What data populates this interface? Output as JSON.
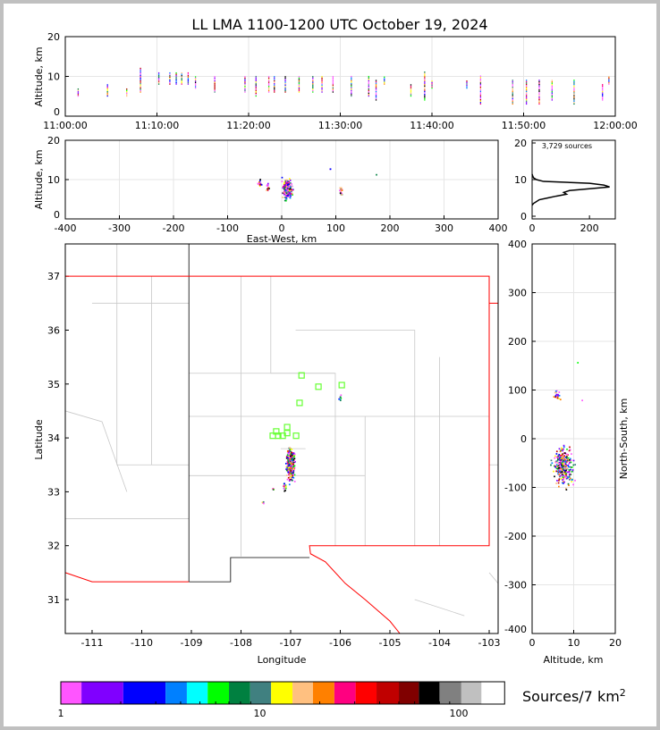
{
  "chart_data": [
    {
      "type": "scatter",
      "panel": "time-altitude",
      "title": "LL LMA 1100-1200 UTC October 19, 2024",
      "ylabel": "Altitude, km",
      "xlim": [
        "11:00:00",
        "12:00:00"
      ],
      "ylim": [
        0,
        20
      ],
      "xticks": [
        "11:00:00",
        "11:10:00",
        "11:20:00",
        "11:30:00",
        "11:40:00",
        "11:50:00",
        "12:00:00"
      ],
      "yticks": [
        0,
        10,
        20
      ],
      "grid": true,
      "streaks_min_altlo_althi": [
        [
          1.4,
          5,
          7
        ],
        [
          4.6,
          5,
          8
        ],
        [
          6.7,
          5,
          7
        ],
        [
          8.2,
          6,
          12
        ],
        [
          10.2,
          8,
          11
        ],
        [
          11.4,
          8,
          11
        ],
        [
          12.1,
          8,
          11
        ],
        [
          12.7,
          8,
          11
        ],
        [
          13.4,
          8,
          11
        ],
        [
          14.2,
          7,
          10
        ],
        [
          16.3,
          6,
          10
        ],
        [
          19.6,
          6,
          10
        ],
        [
          20.8,
          5,
          10
        ],
        [
          22.2,
          6,
          10
        ],
        [
          22.8,
          6,
          10
        ],
        [
          24,
          6,
          10
        ],
        [
          25.5,
          6,
          10
        ],
        [
          27,
          6,
          10
        ],
        [
          28,
          6,
          10
        ],
        [
          29.2,
          6,
          10
        ],
        [
          31.2,
          5,
          10
        ],
        [
          33.1,
          5,
          10
        ],
        [
          33.9,
          4,
          9
        ],
        [
          34.8,
          8,
          10
        ],
        [
          37.7,
          5,
          8
        ],
        [
          39.2,
          4,
          11
        ],
        [
          40,
          7,
          9
        ],
        [
          43.8,
          7,
          9
        ],
        [
          45.3,
          3,
          10
        ],
        [
          48.8,
          3,
          9
        ],
        [
          50.3,
          3,
          9
        ],
        [
          51.7,
          3,
          9
        ],
        [
          53.1,
          4,
          9
        ],
        [
          55.5,
          3,
          9
        ],
        [
          58.6,
          4,
          8
        ],
        [
          59.3,
          8,
          10
        ]
      ]
    },
    {
      "type": "scatter",
      "panel": "east-west-altitude",
      "xlabel": "East-West, km",
      "ylabel": "Altitude, km",
      "xlim": [
        -400,
        400
      ],
      "ylim": [
        0,
        20
      ],
      "xticks": [
        -400,
        -300,
        -200,
        -100,
        0,
        100,
        200,
        300,
        400
      ],
      "yticks": [
        0,
        10,
        20
      ],
      "clusters_ew_alt_spread_count": [
        [
          10,
          7.5,
          8,
          2.2,
          260
        ],
        [
          -40,
          9,
          3,
          0.8,
          20
        ],
        [
          -25,
          8,
          3,
          0.8,
          15
        ],
        [
          110,
          7,
          2,
          1.5,
          20
        ],
        [
          90,
          12.5,
          1,
          0.3,
          2
        ],
        [
          175,
          11,
          1,
          0.3,
          1
        ]
      ]
    },
    {
      "type": "line",
      "panel": "altitude-histogram",
      "annotation": "3,729 sources",
      "xlim": [
        0,
        290
      ],
      "ylim": [
        0,
        20
      ],
      "xticks": [
        0,
        200
      ],
      "yticks": [
        0,
        10,
        20
      ],
      "alt": [
        3,
        3.5,
        4,
        4.5,
        5,
        5.5,
        6,
        6.5,
        7,
        7.5,
        8,
        8.5,
        9,
        9.5,
        10,
        10.5,
        11,
        11.5
      ],
      "count": [
        0,
        5,
        15,
        25,
        55,
        85,
        120,
        110,
        130,
        200,
        270,
        250,
        200,
        40,
        15,
        5,
        2,
        0
      ]
    },
    {
      "type": "scatter",
      "panel": "plan-view",
      "xlabel": "Longitude",
      "ylabel": "Latitude",
      "xlim": [
        -111.54,
        -102.82
      ],
      "ylim": [
        30.37,
        37.6
      ],
      "xticks": [
        -111,
        -110,
        -109,
        -108,
        -107,
        -106,
        -105,
        -104,
        -103
      ],
      "yticks": [
        31,
        32,
        33,
        34,
        35,
        36,
        37
      ],
      "clusters_lon_lat_spread_count": [
        [
          -107.0,
          33.5,
          0.08,
          0.3,
          300
        ],
        [
          -107.12,
          33.1,
          0.03,
          0.1,
          20
        ],
        [
          -107.35,
          33.05,
          0.02,
          0.02,
          6
        ],
        [
          -107.55,
          32.8,
          0.02,
          0.02,
          5
        ],
        [
          -106.0,
          34.75,
          0.02,
          0.08,
          8
        ]
      ],
      "stations_lon_lat": [
        [
          -107.36,
          34.04
        ],
        [
          -107.25,
          34.04
        ],
        [
          -107.16,
          34.04
        ],
        [
          -107.07,
          34.2
        ],
        [
          -107.07,
          34.09
        ],
        [
          -106.89,
          34.04
        ],
        [
          -107.29,
          34.12
        ],
        [
          -106.78,
          35.16
        ],
        [
          -106.44,
          34.95
        ],
        [
          -106.82,
          34.65
        ],
        [
          -105.97,
          34.98
        ]
      ],
      "station_color": "#66ff33",
      "state_border_color": "#ff0000",
      "county_border_color": "#c8c8c8"
    },
    {
      "type": "scatter",
      "panel": "altitude-north-south",
      "xlabel": "Altitude, km",
      "ylabel": "North-South, km",
      "xlim": [
        0,
        20
      ],
      "ylim": [
        -400,
        400
      ],
      "xticks": [
        0,
        10,
        20
      ],
      "yticks": [
        -400,
        -300,
        -200,
        -100,
        0,
        100,
        200,
        300,
        400
      ],
      "clusters_alt_ns_spread_count": [
        [
          7.5,
          -55,
          2.2,
          35,
          300
        ],
        [
          6,
          88,
          0.8,
          10,
          20
        ],
        [
          12,
          78,
          0.2,
          2,
          1
        ],
        [
          11,
          158,
          0.2,
          2,
          1
        ]
      ]
    },
    {
      "type": "colorbar",
      "label": "Sources/7 km²",
      "label_main": "Sources/7 km",
      "label_sup": "2",
      "scale": "log",
      "ticks": [
        "1",
        "10",
        "100"
      ],
      "boundaries": [
        1,
        1.27,
        2.06,
        3.36,
        4.3,
        5.47,
        7.0,
        8.95,
        11.4,
        14.6,
        18.5,
        23.7,
        30.3,
        38.6,
        50,
        63,
        80,
        103,
        130,
        170
      ],
      "colors": [
        "#ff55ff",
        "#8000ff",
        "#0000ff",
        "#0080ff",
        "#00ffff",
        "#00ff00",
        "#008040",
        "#408080",
        "#ffff00",
        "#ffc080",
        "#ff8000",
        "#ff0080",
        "#ff0000",
        "#c00000",
        "#800000",
        "#000000",
        "#808080",
        "#c0c0c0",
        "#ffffff"
      ]
    }
  ]
}
